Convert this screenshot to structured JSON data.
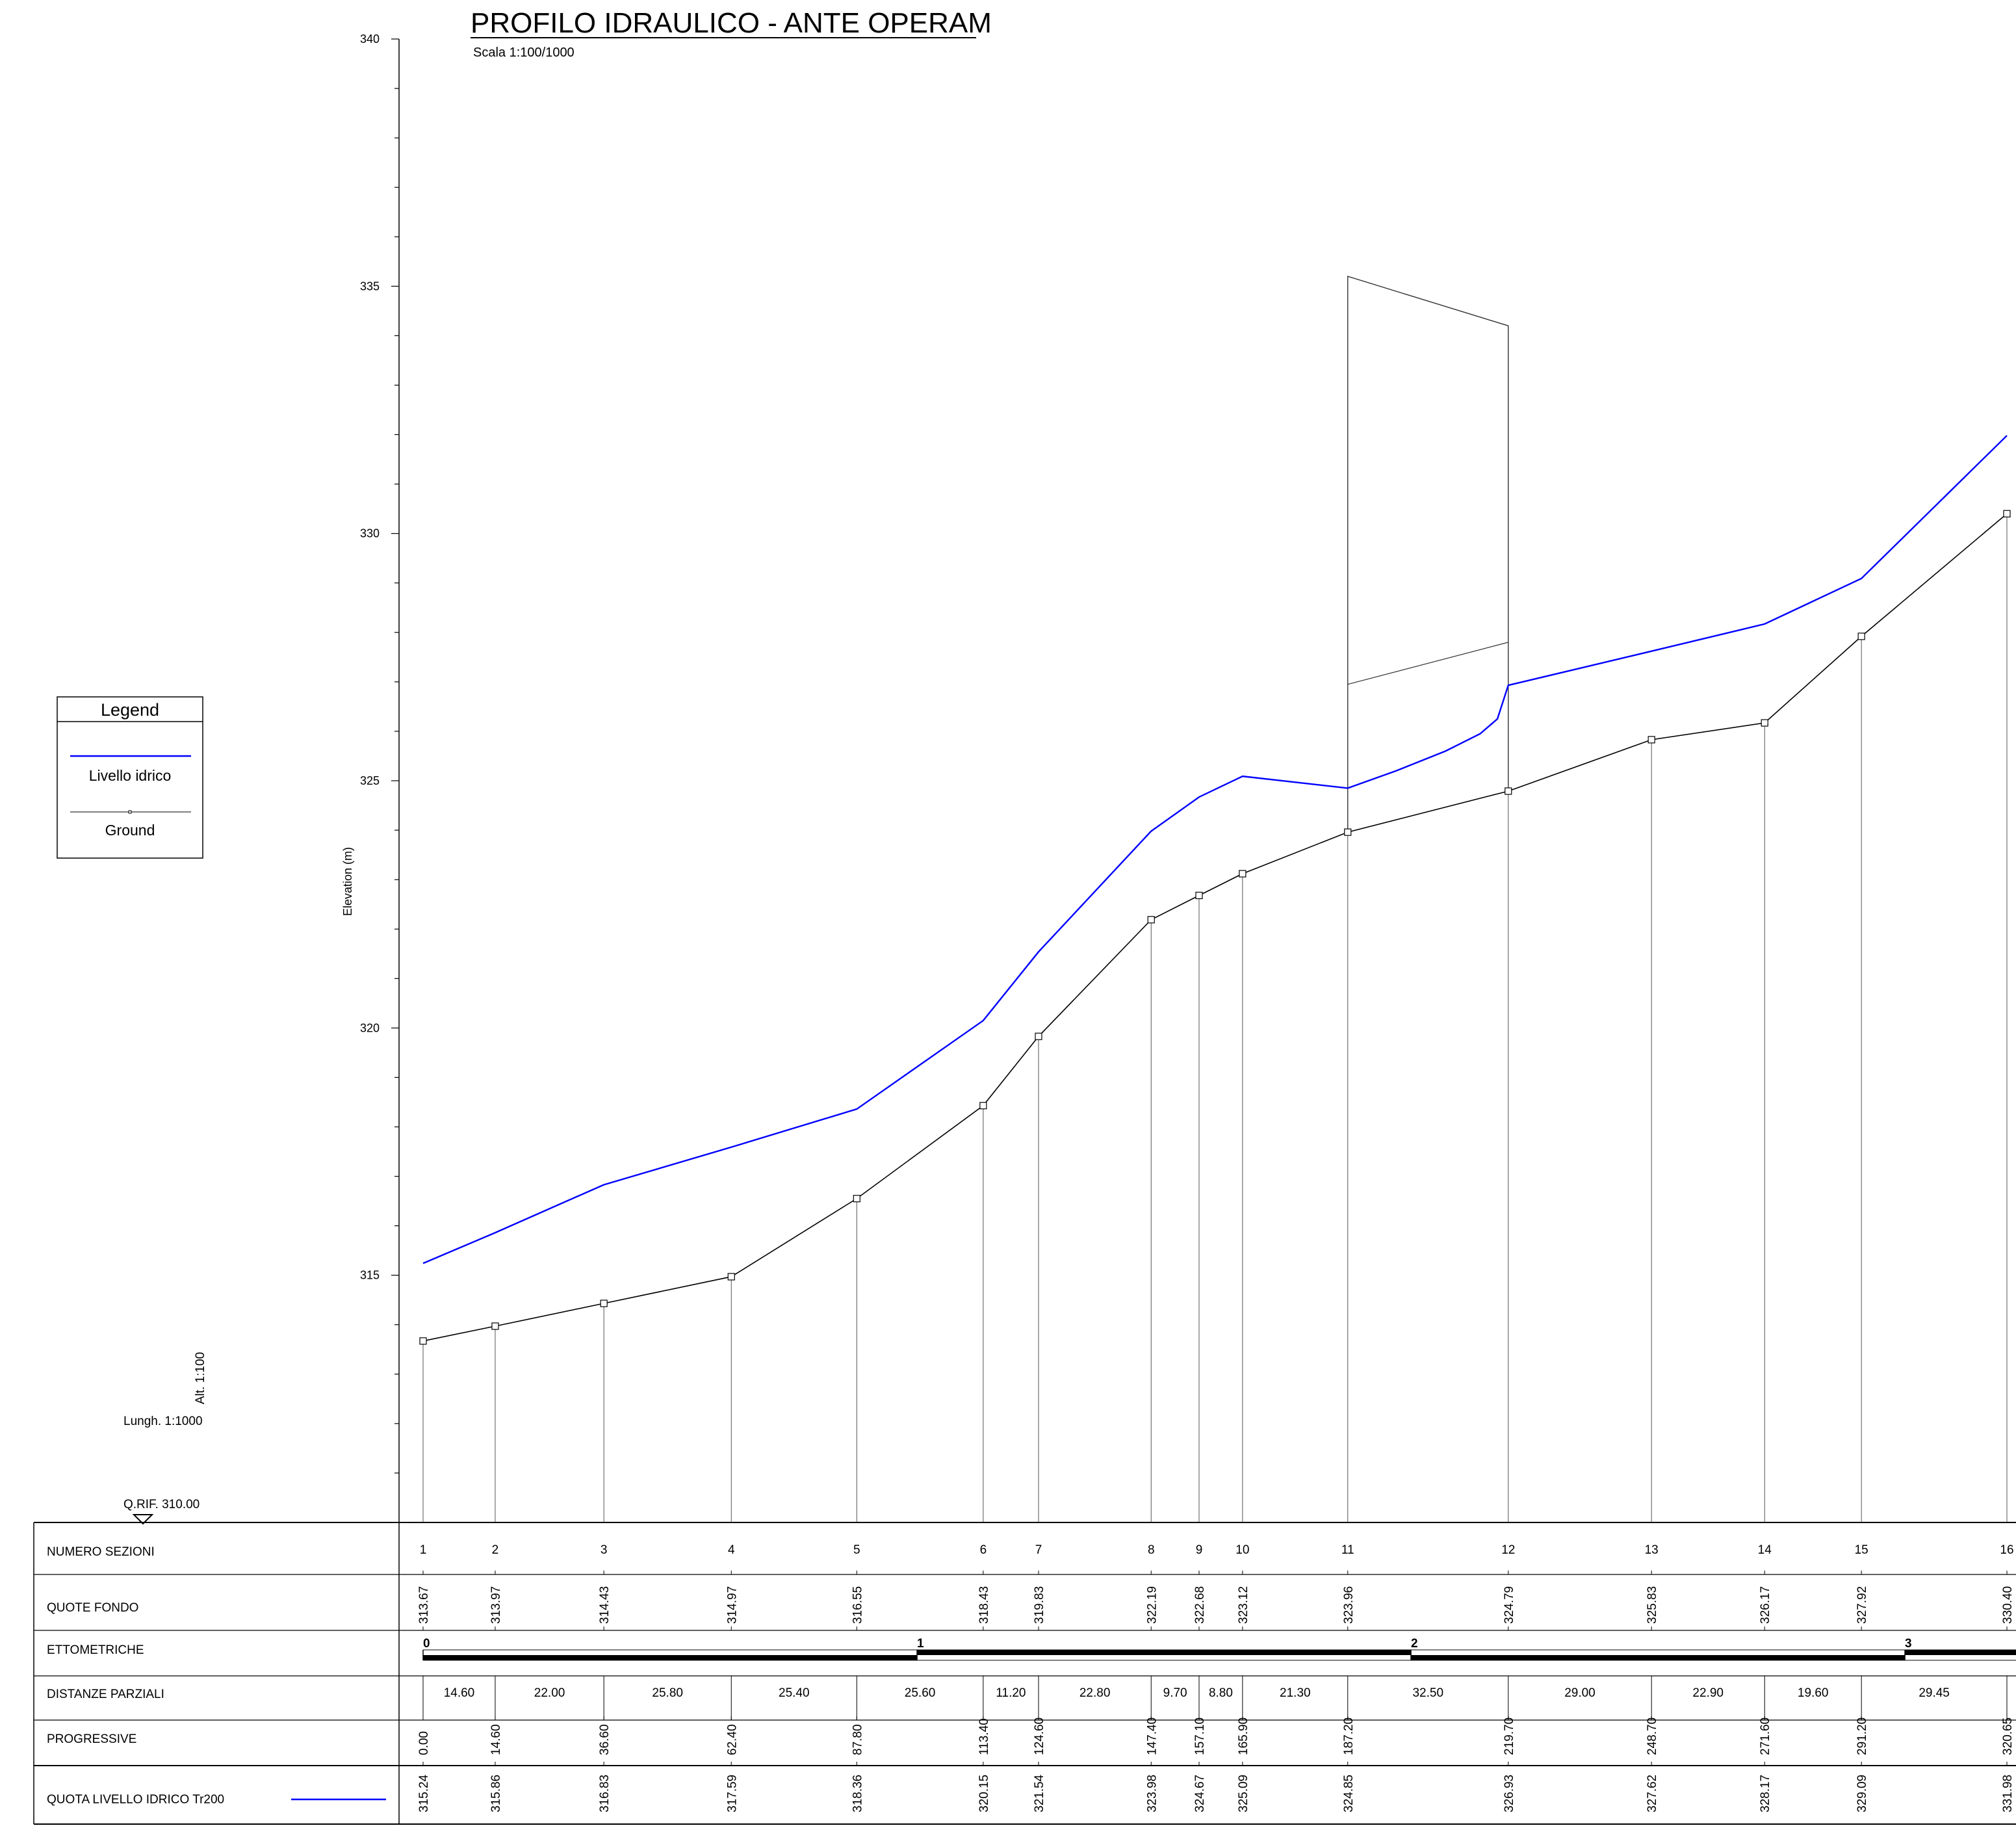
{
  "chart_data": {
    "type": "line",
    "title": "PROFILO IDRAULICO - ANTE OPERAM",
    "subtitle": "Scala 1:100/1000",
    "ylabel": "Elevation (m)",
    "ylim": [
      310,
      340
    ],
    "yticks": [
      315,
      320,
      325,
      330,
      335,
      340
    ],
    "scales": {
      "alt": "Alt. 1:100",
      "lungh": "Lungh. 1:1000",
      "qrif": "Q.RIF. 310.00"
    },
    "legend": {
      "title": "Legend",
      "placement": "left",
      "items": [
        "Livello idrico",
        "Ground"
      ]
    },
    "colors": {
      "water": "#0000ff",
      "ground": "#000000",
      "grid": "#666666"
    },
    "sections": [
      "1",
      "2",
      "3",
      "4",
      "5",
      "6",
      "7",
      "8",
      "9",
      "10",
      "11",
      "12",
      "13",
      "14",
      "15",
      "16"
    ],
    "progressive": [
      0.0,
      14.6,
      36.6,
      62.4,
      87.8,
      113.4,
      124.6,
      147.4,
      157.1,
      165.9,
      187.2,
      219.7,
      248.7,
      271.6,
      291.2,
      320.65
    ],
    "progressive_labels": [
      "0.00",
      "14.60",
      "36.60",
      "62.40",
      "87.80",
      "113.40",
      "124.60",
      "147.40",
      "157.10",
      "165.90",
      "187.20",
      "219.70",
      "248.70",
      "271.60",
      "291.20",
      "320.65"
    ],
    "series": [
      {
        "name": "Ground",
        "values": [
          313.67,
          313.97,
          314.43,
          314.97,
          316.55,
          318.43,
          319.83,
          322.19,
          322.68,
          323.12,
          323.96,
          324.79,
          325.83,
          326.17,
          327.92,
          330.4
        ],
        "labels": [
          "313.67",
          "313.97",
          "314.43",
          "314.97",
          "316.55",
          "318.43",
          "319.83",
          "322.19",
          "322.68",
          "323.12",
          "323.96",
          "324.79",
          "325.83",
          "326.17",
          "327.92",
          "330.40"
        ]
      },
      {
        "name": "Livello idrico",
        "values": [
          315.24,
          315.86,
          316.83,
          317.59,
          318.36,
          320.15,
          321.54,
          323.98,
          324.67,
          325.09,
          324.85,
          326.93,
          327.62,
          328.17,
          329.09,
          331.98
        ],
        "labels": [
          "315.24",
          "315.86",
          "316.83",
          "317.59",
          "318.36",
          "320.15",
          "321.54",
          "323.98",
          "324.67",
          "325.09",
          "324.85",
          "326.93",
          "327.62",
          "328.17",
          "329.09",
          "331.98"
        ],
        "extra_points": [
          {
            "x": 187.2,
            "y": 324.85
          },
          {
            "x": 197.0,
            "y": 325.2
          },
          {
            "x": 207.0,
            "y": 325.6
          },
          {
            "x": 214.0,
            "y": 325.95
          },
          {
            "x": 217.5,
            "y": 326.25
          },
          {
            "x": 219.7,
            "y": 326.93
          }
        ]
      }
    ],
    "structure": {
      "x_start": 187.2,
      "x_end": 219.7,
      "top_start": 335.2,
      "top_end": 334.2,
      "mid_start": 326.95,
      "mid_end": 327.8
    },
    "ettometriche": {
      "labels": [
        "0",
        "1",
        "2",
        "3"
      ],
      "positions": [
        0,
        100,
        200,
        300
      ]
    },
    "partial_distances": [
      "14.60",
      "22.00",
      "25.80",
      "25.40",
      "25.60",
      "11.20",
      "22.80",
      "9.70",
      "8.80",
      "21.30",
      "32.50",
      "29.00",
      "22.90",
      "19.60",
      "29.45"
    ],
    "table_rows": {
      "numero_sezioni": "NUMERO SEZIONI",
      "quote_fondo": "QUOTE FONDO",
      "ettometriche": "ETTOMETRICHE",
      "distanze_parziali": "DISTANZE PARZIALI",
      "progressive": "PROGRESSIVE",
      "quota_livello": "QUOTA LIVELLO IDRICO Tr200"
    }
  }
}
